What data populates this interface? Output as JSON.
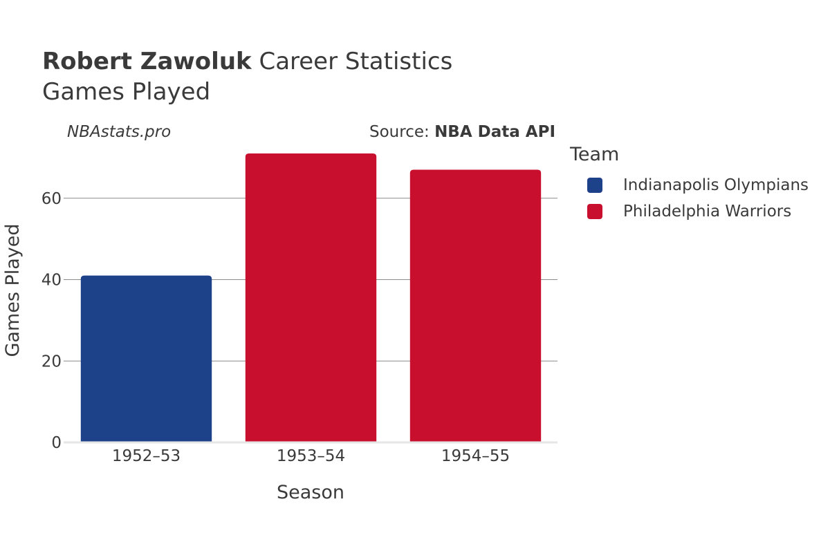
{
  "header": {
    "title_name": "Robert Zawoluk",
    "title_rest": " Career Statistics",
    "subtitle": "Games Played",
    "brand": "NBAstats.pro",
    "source_prefix": "Source: ",
    "source_name": "NBA Data API"
  },
  "legend": {
    "title": "Team",
    "items": [
      {
        "label": "Indianapolis Olympians",
        "color": "#1d428a"
      },
      {
        "label": "Philadelphia Warriors",
        "color": "#c8102e"
      }
    ]
  },
  "chart_data": {
    "type": "bar",
    "categories": [
      "1952–53",
      "1953–54",
      "1954–55"
    ],
    "values": [
      41,
      71,
      67
    ],
    "bar_teams": [
      "Indianapolis Olympians",
      "Philadelphia Warriors",
      "Philadelphia Warriors"
    ],
    "xlabel": "Season",
    "ylabel": "Games Played",
    "ylim": [
      0,
      71
    ],
    "yticks": [
      0,
      20,
      40,
      60
    ],
    "grid": true,
    "legend_position": "right"
  }
}
